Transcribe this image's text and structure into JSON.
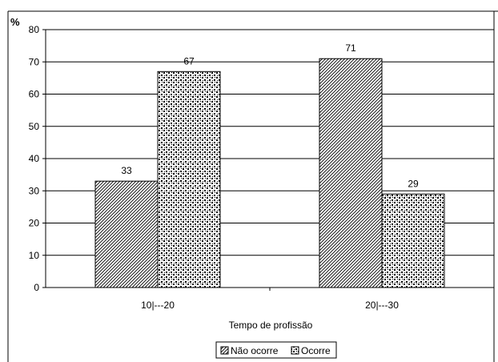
{
  "chart_data": {
    "type": "bar",
    "title": "",
    "ylabel": "%",
    "xlabel": "Tempo de profissão",
    "categories": [
      "10|---20",
      "20|---30"
    ],
    "series": [
      {
        "name": "Não ocorre",
        "values": [
          33,
          71
        ],
        "pattern": "diagonal-hatch"
      },
      {
        "name": "Ocorre",
        "values": [
          67,
          29
        ],
        "pattern": "dots"
      }
    ],
    "ylim": [
      0,
      80
    ],
    "yticks": [
      0,
      10,
      20,
      30,
      40,
      50,
      60,
      70,
      80
    ],
    "grid": true,
    "legend_position": "bottom"
  }
}
